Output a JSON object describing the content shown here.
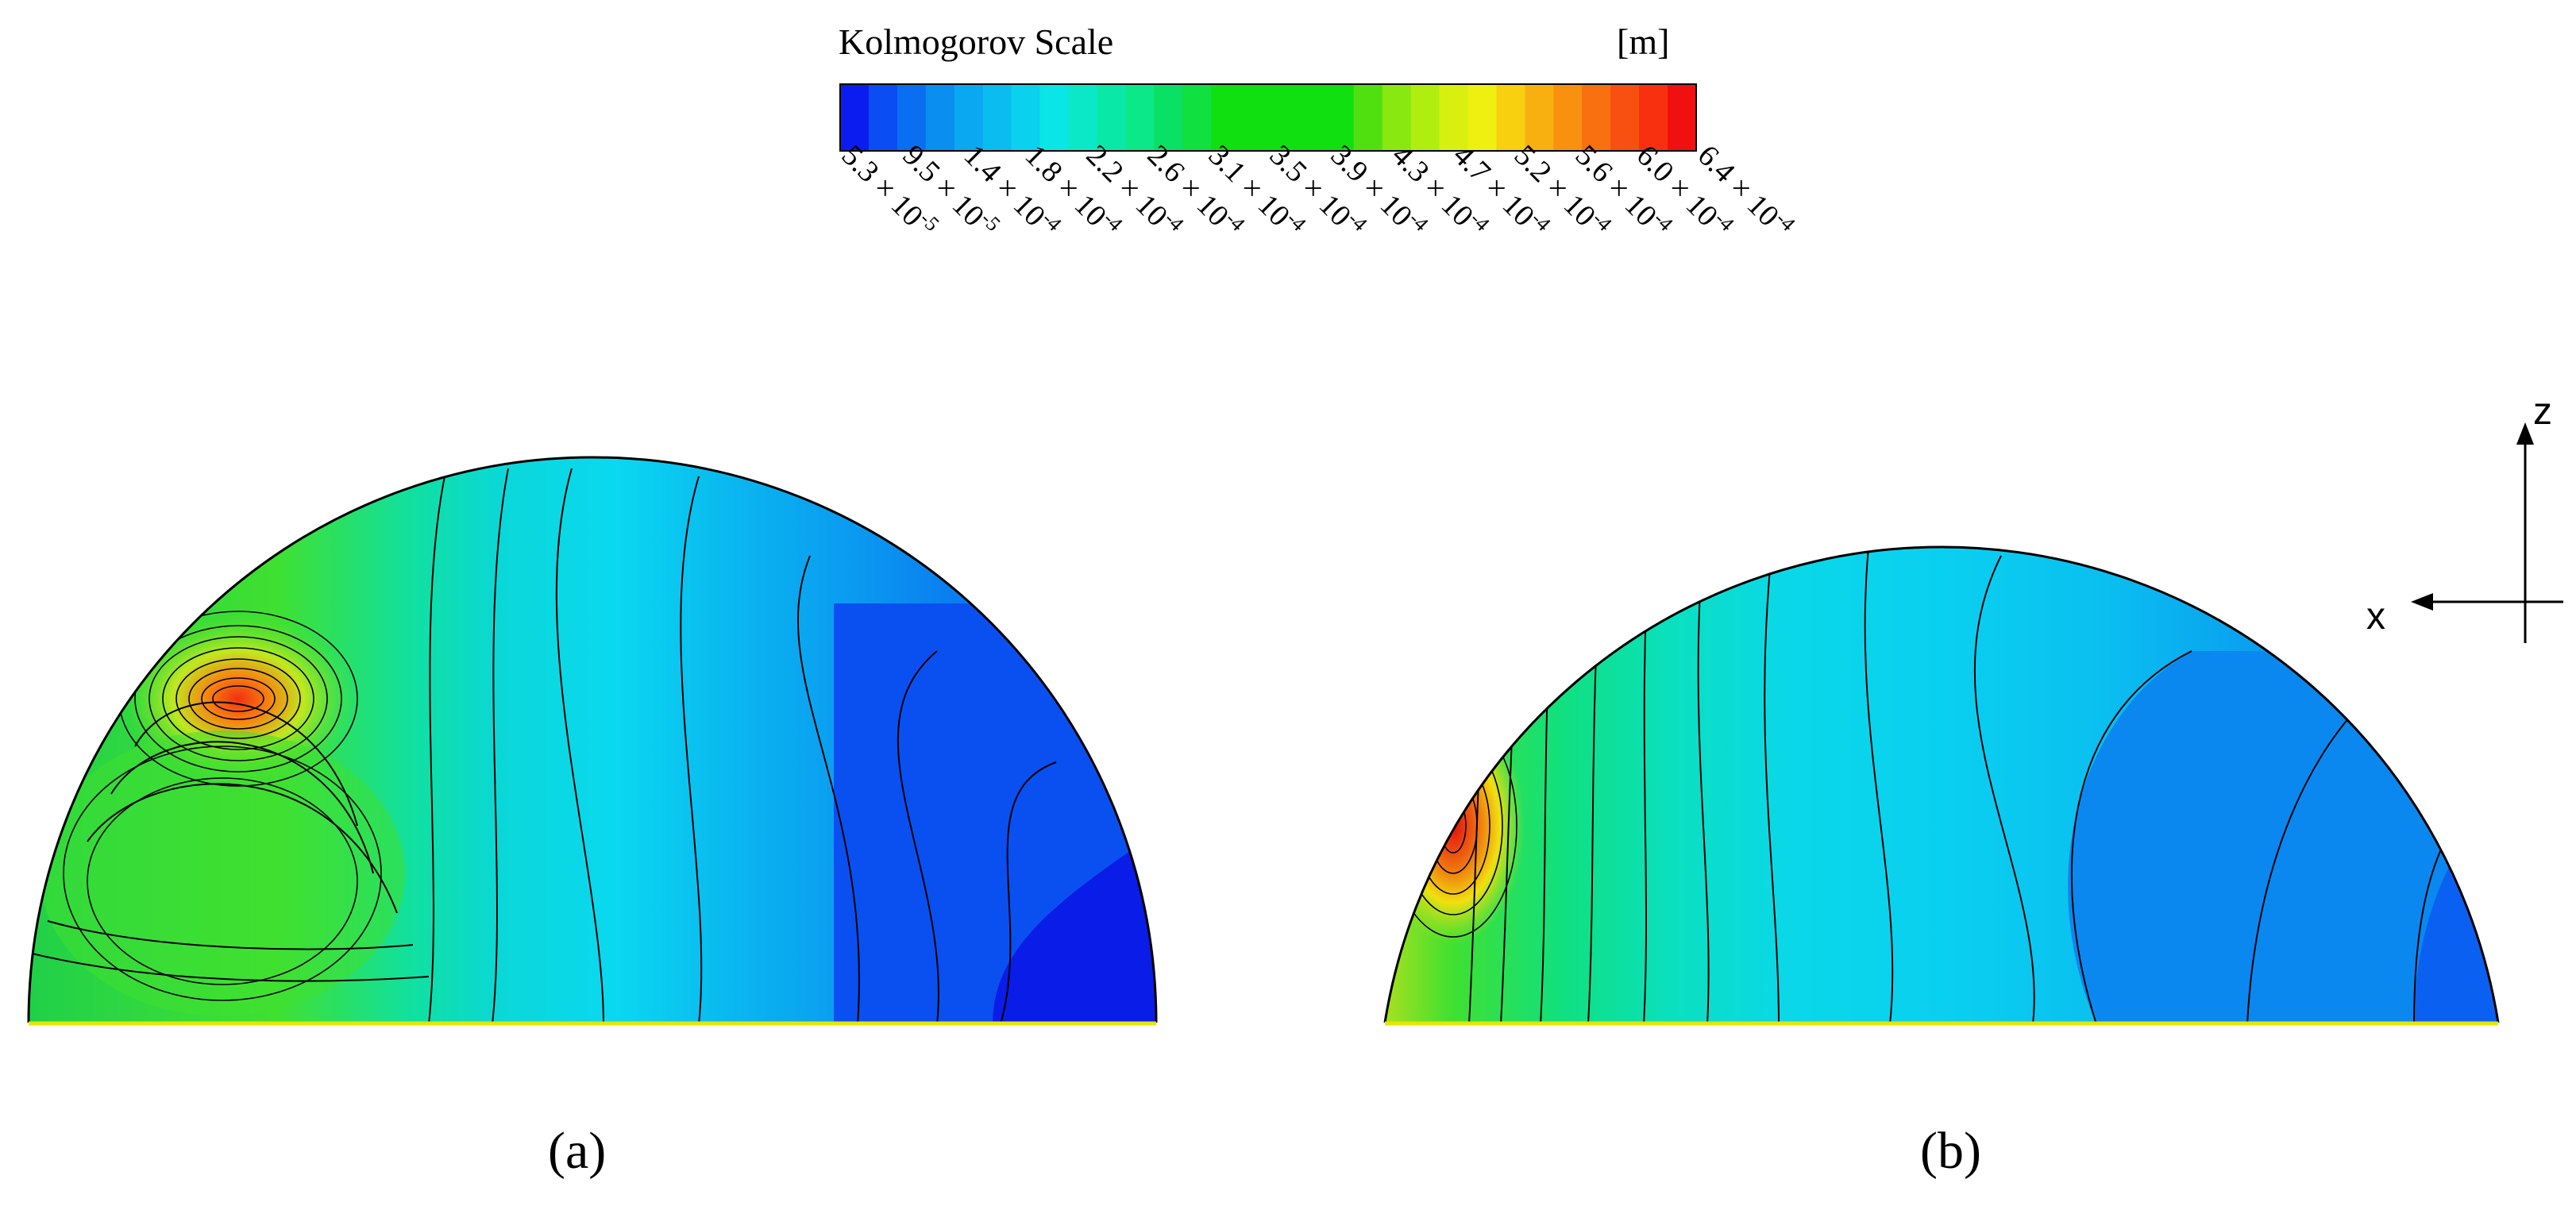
{
  "legend": {
    "title": "Kolmogorov Scale",
    "unit": "[m]",
    "ticks": [
      {
        "mant": "5.3",
        "exp": "-5"
      },
      {
        "mant": "9.5",
        "exp": "-5"
      },
      {
        "mant": "1.4",
        "exp": "-4"
      },
      {
        "mant": "1.8",
        "exp": "-4"
      },
      {
        "mant": "2.2",
        "exp": "-4"
      },
      {
        "mant": "2.6",
        "exp": "-4"
      },
      {
        "mant": "3.1",
        "exp": "-4"
      },
      {
        "mant": "3.5",
        "exp": "-4"
      },
      {
        "mant": "3.9",
        "exp": "-4"
      },
      {
        "mant": "4.3",
        "exp": "-4"
      },
      {
        "mant": "4.7",
        "exp": "-4"
      },
      {
        "mant": "5.2",
        "exp": "-4"
      },
      {
        "mant": "5.6",
        "exp": "-4"
      },
      {
        "mant": "6.0",
        "exp": "-4"
      },
      {
        "mant": "6.4",
        "exp": "-4"
      }
    ],
    "colors": [
      "#0a1cf0",
      "#0a4df2",
      "#0a6ef0",
      "#0a8ef0",
      "#0aa8f0",
      "#0abcf0",
      "#0ad2ee",
      "#0ae6e6",
      "#0ae8c8",
      "#0ae8a8",
      "#0ae888",
      "#0ae064",
      "#10e040",
      "#10e010",
      "#10e010",
      "#10e010",
      "#10e010",
      "#10e010",
      "#50e010",
      "#88e810",
      "#b0ee10",
      "#d8f010",
      "#eef010",
      "#f8d010",
      "#f8b010",
      "#f89010",
      "#f87010",
      "#f85010",
      "#f83010",
      "#f01010"
    ]
  },
  "axes": {
    "z_label": "z",
    "x_label": "x"
  },
  "panels": [
    {
      "label": "(a)"
    },
    {
      "label": "(b)"
    }
  ]
}
